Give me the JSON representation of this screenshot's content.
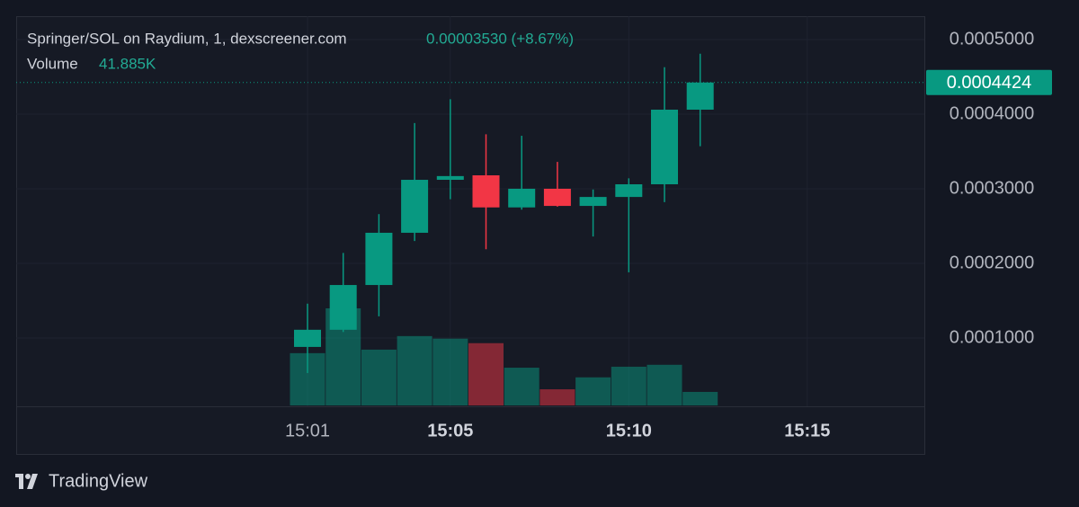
{
  "chart_data": {
    "type": "candlestick",
    "title": "Springer/SOL on Raydium, 1, dexscreener.com",
    "subtitle": "0.00003530 (+8.67%)",
    "categories": [
      "15:01",
      null,
      null,
      null,
      "15:05",
      null,
      null,
      null,
      null,
      "15:10",
      null,
      null,
      null,
      null,
      "15:15"
    ],
    "open": [
      8.8e-05,
      0.000111,
      0.000171,
      0.000241,
      0.000312,
      0.000318,
      0.000275,
      0.0003,
      0.000277,
      0.000289,
      0.000306,
      0.000406,
      null,
      null,
      null
    ],
    "high": [
      0.000146,
      0.000214,
      0.000266,
      0.000388,
      0.00042,
      0.000373,
      0.000371,
      0.000336,
      0.000299,
      0.000314,
      0.000463,
      0.000481,
      null,
      null,
      null
    ],
    "low": [
      5.3e-05,
      0.000108,
      0.000129,
      0.00023,
      0.000286,
      0.000219,
      0.000272,
      0.000276,
      0.000236,
      0.000188,
      0.000282,
      0.000357,
      null,
      null,
      null
    ],
    "close": [
      0.000111,
      0.000171,
      0.000241,
      0.000312,
      0.000317,
      0.000275,
      0.0003,
      0.000277,
      0.000289,
      0.000306,
      0.000406,
      0.0004424,
      null,
      null,
      null
    ],
    "up_color": "#089981",
    "down_color": "#f23645",
    "volume": {
      "name": "Volume",
      "values": [
        162000,
        301000,
        173000,
        215000,
        207000,
        193000,
        117000,
        50000,
        87000,
        120000,
        126000,
        41885,
        null,
        null,
        null
      ],
      "value_labels": [
        null,
        null,
        null,
        null,
        null,
        null,
        null,
        null,
        null,
        null,
        null,
        "41.885K",
        null,
        null,
        null
      ]
    },
    "ylim": [
      8.4e-06,
      0.0005313
    ],
    "yticks": [
      {
        "value": 0.0001,
        "label": "0.0001000"
      },
      {
        "value": 0.0002,
        "label": "0.0002000"
      },
      {
        "value": 0.0003,
        "label": "0.0003000"
      },
      {
        "value": 0.0004,
        "label": "0.0004000"
      },
      {
        "value": 0.0005,
        "label": "0.0005000"
      }
    ],
    "last_price": {
      "value": 0.0004424,
      "label": "0.0004424"
    },
    "grid": true,
    "footer": "TradingView"
  }
}
